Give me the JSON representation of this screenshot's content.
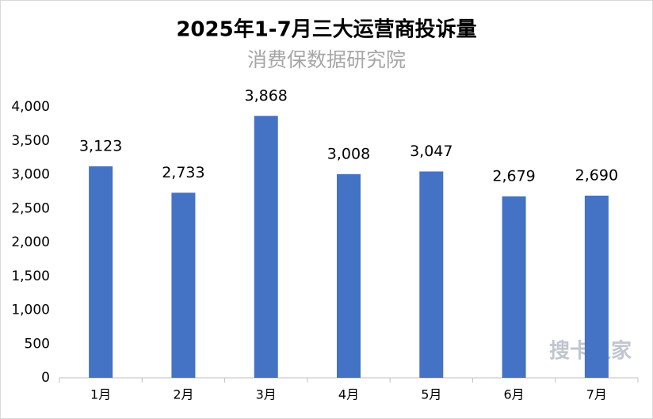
{
  "chart_data": {
    "type": "bar",
    "title": "2025年1-7月三大运营商投诉量",
    "subtitle": "消费保数据研究院",
    "categories": [
      "1月",
      "2月",
      "3月",
      "4月",
      "5月",
      "6月",
      "7月"
    ],
    "values": [
      3123,
      2733,
      3868,
      3008,
      3047,
      2679,
      2690
    ],
    "value_labels": [
      "3,123",
      "2,733",
      "3,868",
      "3,008",
      "3,047",
      "2,679",
      "2,690"
    ],
    "color": "#4472c4",
    "ylim": [
      0,
      4000
    ],
    "yticks": [
      0,
      500,
      {
        "value": 1000,
        "label": "1,000"
      },
      {
        "value": 1500,
        "label": "1,500"
      },
      {
        "value": 2000,
        "label": "2,000"
      },
      {
        "value": 2500,
        "label": "2,500"
      },
      {
        "value": 3000,
        "label": "3,000"
      },
      {
        "value": 3500,
        "label": "3,500"
      },
      {
        "value": 4000,
        "label": "4,000"
      }
    ],
    "grid": false,
    "watermark": "搜卡之家"
  }
}
